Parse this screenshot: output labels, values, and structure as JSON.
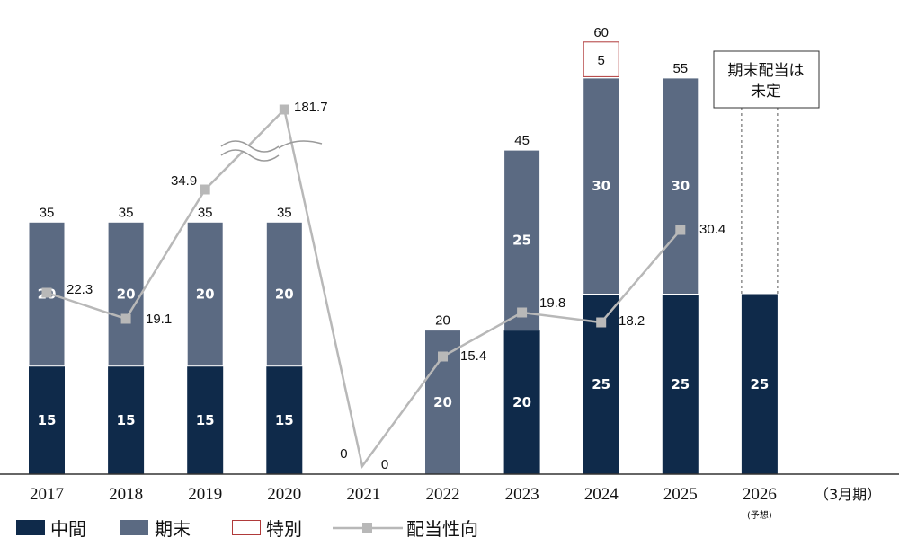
{
  "chart_data": {
    "type": "bar",
    "categories": [
      "2017",
      "2018",
      "2019",
      "2020",
      "2021",
      "2022",
      "2023",
      "2024",
      "2025",
      "2026"
    ],
    "category_notes": [
      "",
      "",
      "",
      "",
      "",
      "",
      "",
      "",
      "",
      "(予想)"
    ],
    "x_unit": "（3月期）",
    "series": [
      {
        "name": "中間",
        "kind": "stacked-bar",
        "color": "#0f2a4a",
        "values": [
          15,
          15,
          15,
          15,
          0,
          0,
          20,
          25,
          25,
          25
        ]
      },
      {
        "name": "期末",
        "kind": "stacked-bar",
        "color": "#5b6a82",
        "values": [
          20,
          20,
          20,
          20,
          0,
          20,
          25,
          30,
          30,
          null
        ]
      },
      {
        "name": "特別",
        "kind": "stacked-bar",
        "color": "#ffffff",
        "border_color": "#b03a3a",
        "values": [
          0,
          0,
          0,
          0,
          0,
          0,
          0,
          5,
          0,
          null
        ]
      },
      {
        "name": "配当性向",
        "kind": "line",
        "color": "#b8b8b8",
        "values": [
          22.3,
          19.1,
          34.9,
          181.7,
          0,
          15.4,
          19.8,
          18.2,
          30.4,
          null
        ]
      }
    ],
    "totals": [
      "35",
      "35",
      "35",
      "35",
      "0",
      "20",
      "45",
      "60",
      "55",
      ""
    ],
    "ratio_labels": [
      "22.3",
      "19.1",
      "34.9",
      "181.7",
      "0",
      "15.4",
      "19.8",
      "18.2",
      "30.4",
      ""
    ],
    "axis_break": true,
    "ylim": [
      0,
      70
    ],
    "legend_position": "bottom",
    "annotation": {
      "line1": "期末配当は",
      "line2": "未定",
      "category": "2026"
    }
  }
}
